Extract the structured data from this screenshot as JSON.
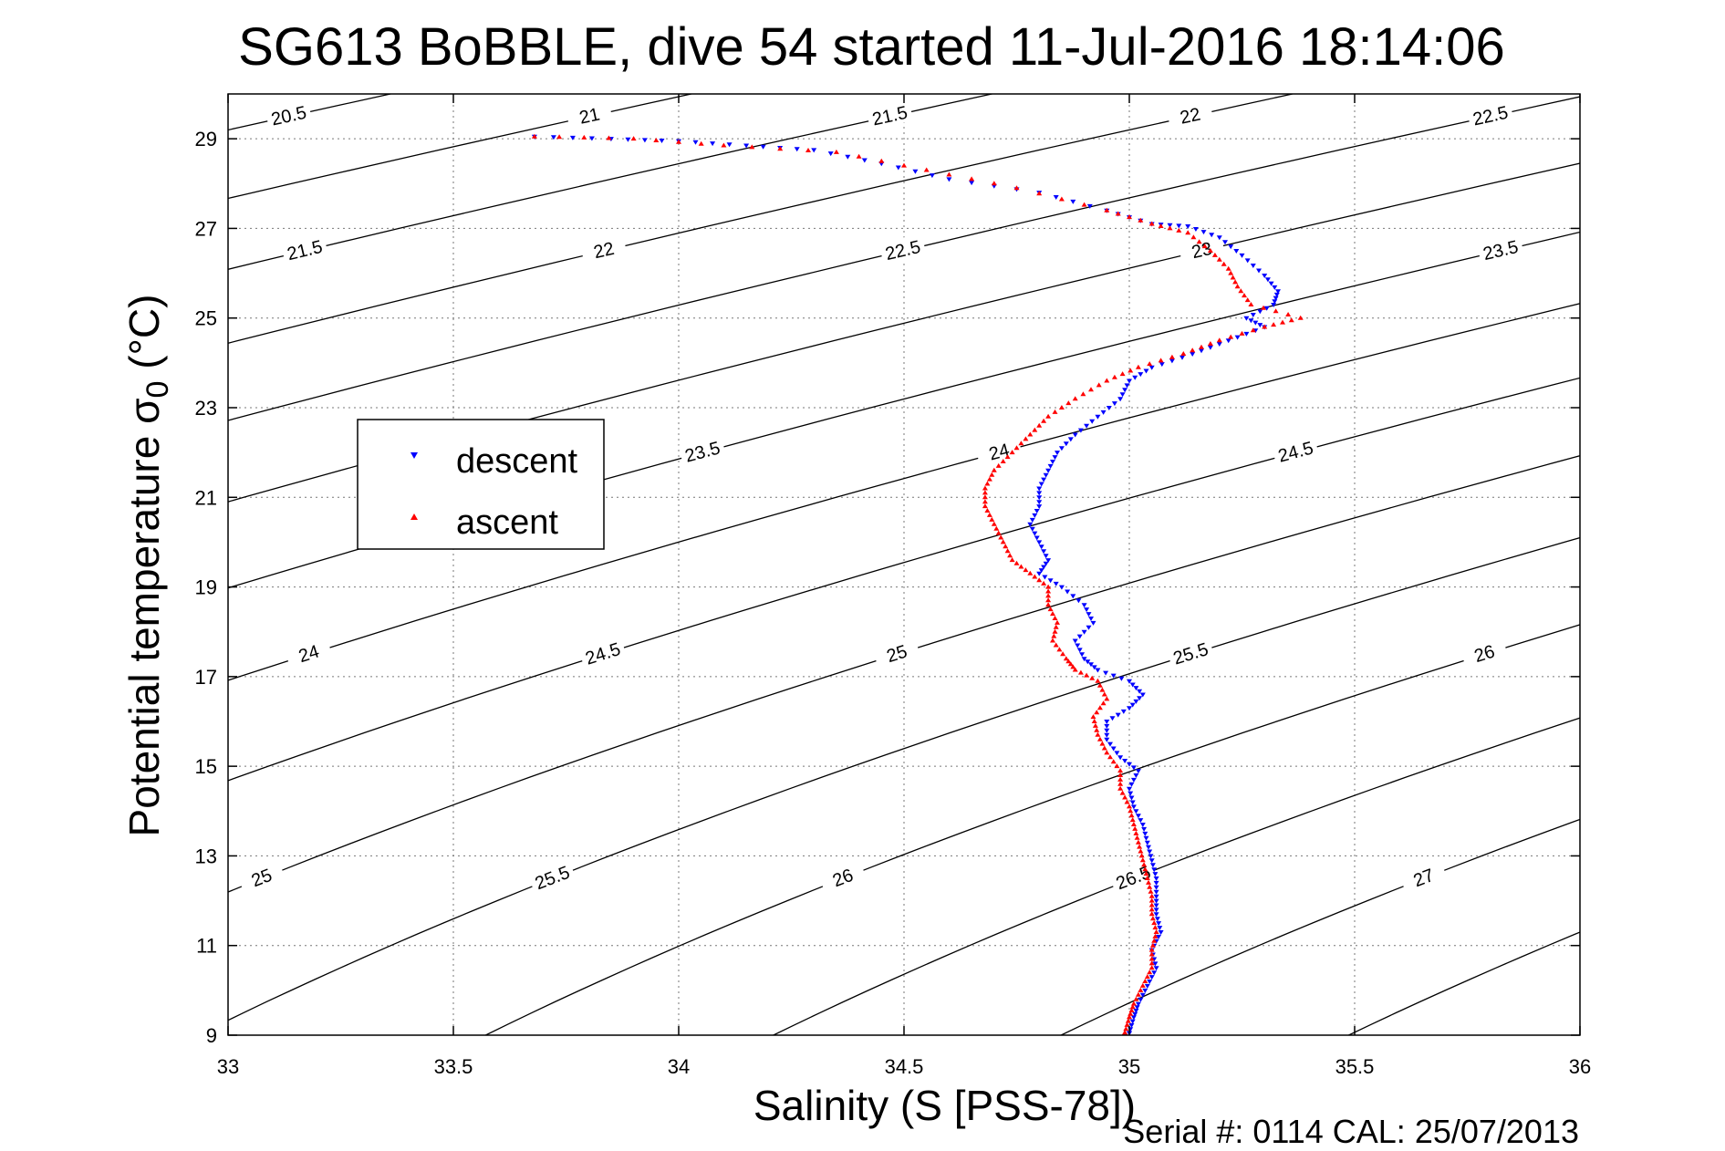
{
  "figure": {
    "title": "SG613 BoBBLE, dive 54 started 11-Jul-2016 18:14:06",
    "xlabel": "Salinity (S [PSS-78])",
    "ylabel_main": "Potential temperature σ",
    "ylabel_sub": "0",
    "ylabel_unit": " (°C)",
    "footer": "Serial #: 0114  CAL: 25/07/2013"
  },
  "chart_data": {
    "type": "scatter",
    "title": "SG613 BoBBLE, dive 54 started 11-Jul-2016 18:14:06",
    "xlabel": "Salinity (S [PSS-78])",
    "ylabel": "Potential temperature σ0 (°C)",
    "xlim": [
      33,
      36
    ],
    "ylim": [
      9,
      30
    ],
    "xticks": [
      33,
      33.5,
      34,
      34.5,
      35,
      35.5,
      36
    ],
    "xtick_labels": [
      "33",
      "33.5",
      "34",
      "34.5",
      "35",
      "35.5",
      "36"
    ],
    "yticks": [
      9,
      11,
      13,
      15,
      17,
      19,
      21,
      23,
      25,
      27,
      29
    ],
    "ytick_labels": [
      "9",
      "11",
      "13",
      "15",
      "17",
      "19",
      "21",
      "23",
      "25",
      "27",
      "29"
    ],
    "grid": true,
    "legend_position": "upper-left",
    "density_contours": {
      "levels": [
        20.5,
        21,
        21.5,
        22,
        22.5,
        23,
        23.5,
        24,
        24.5,
        25,
        25.5,
        26,
        26.5,
        27,
        27.5
      ],
      "color": "#000000"
    },
    "series": [
      {
        "name": "descent",
        "color": "#0000ff",
        "marker": "triangle-down",
        "points": [
          [
            33.68,
            29.05
          ],
          [
            33.85,
            29.0
          ],
          [
            34.0,
            28.95
          ],
          [
            34.15,
            28.85
          ],
          [
            34.3,
            28.75
          ],
          [
            34.45,
            28.45
          ],
          [
            34.6,
            28.1
          ],
          [
            34.8,
            27.8
          ],
          [
            34.95,
            27.4
          ],
          [
            35.05,
            27.1
          ],
          [
            35.13,
            27.05
          ],
          [
            35.2,
            26.8
          ],
          [
            35.25,
            26.4
          ],
          [
            35.3,
            25.95
          ],
          [
            35.33,
            25.6
          ],
          [
            35.32,
            25.3
          ],
          [
            35.26,
            25.0
          ],
          [
            35.3,
            24.8
          ],
          [
            35.22,
            24.5
          ],
          [
            35.14,
            24.2
          ],
          [
            35.05,
            23.9
          ],
          [
            35.0,
            23.6
          ],
          [
            34.98,
            23.2
          ],
          [
            34.93,
            22.8
          ],
          [
            34.88,
            22.4
          ],
          [
            34.84,
            22.0
          ],
          [
            34.82,
            21.6
          ],
          [
            34.8,
            21.2
          ],
          [
            34.8,
            20.8
          ],
          [
            34.78,
            20.4
          ],
          [
            34.8,
            20.0
          ],
          [
            34.82,
            19.6
          ],
          [
            34.8,
            19.3
          ],
          [
            34.85,
            19.0
          ],
          [
            34.9,
            18.6
          ],
          [
            34.92,
            18.2
          ],
          [
            34.88,
            17.8
          ],
          [
            34.9,
            17.4
          ],
          [
            34.93,
            17.15
          ],
          [
            35.0,
            16.9
          ],
          [
            35.03,
            16.6
          ],
          [
            35.0,
            16.3
          ],
          [
            34.95,
            16.0
          ],
          [
            34.95,
            15.6
          ],
          [
            34.98,
            15.2
          ],
          [
            35.02,
            14.9
          ],
          [
            35.0,
            14.5
          ],
          [
            35.01,
            14.1
          ],
          [
            35.03,
            13.7
          ],
          [
            35.04,
            13.3
          ],
          [
            35.05,
            12.9
          ],
          [
            35.06,
            12.5
          ],
          [
            35.06,
            12.1
          ],
          [
            35.06,
            11.7
          ],
          [
            35.07,
            11.3
          ],
          [
            35.05,
            10.9
          ],
          [
            35.06,
            10.5
          ],
          [
            35.04,
            10.1
          ],
          [
            35.02,
            9.7
          ],
          [
            35.01,
            9.4
          ],
          [
            35.0,
            9.05
          ]
        ]
      },
      {
        "name": "ascent",
        "color": "#ff0000",
        "marker": "triangle-up",
        "points": [
          [
            33.68,
            29.05
          ],
          [
            33.9,
            29.0
          ],
          [
            34.1,
            28.85
          ],
          [
            34.35,
            28.7
          ],
          [
            34.55,
            28.3
          ],
          [
            34.75,
            27.9
          ],
          [
            34.95,
            27.4
          ],
          [
            35.05,
            27.1
          ],
          [
            35.13,
            26.9
          ],
          [
            35.18,
            26.5
          ],
          [
            35.22,
            26.1
          ],
          [
            35.24,
            25.7
          ],
          [
            35.27,
            25.3
          ],
          [
            35.38,
            25.0
          ],
          [
            35.3,
            24.8
          ],
          [
            35.2,
            24.5
          ],
          [
            35.12,
            24.2
          ],
          [
            35.02,
            23.9
          ],
          [
            34.95,
            23.6
          ],
          [
            34.88,
            23.2
          ],
          [
            34.82,
            22.8
          ],
          [
            34.78,
            22.4
          ],
          [
            34.74,
            22.0
          ],
          [
            34.7,
            21.6
          ],
          [
            34.68,
            21.2
          ],
          [
            34.68,
            20.8
          ],
          [
            34.7,
            20.4
          ],
          [
            34.72,
            20.0
          ],
          [
            34.74,
            19.6
          ],
          [
            34.78,
            19.3
          ],
          [
            34.82,
            19.0
          ],
          [
            34.82,
            18.6
          ],
          [
            34.84,
            18.2
          ],
          [
            34.83,
            17.8
          ],
          [
            34.86,
            17.4
          ],
          [
            34.88,
            17.15
          ],
          [
            34.93,
            16.9
          ],
          [
            34.95,
            16.5
          ],
          [
            34.92,
            16.1
          ],
          [
            34.93,
            15.7
          ],
          [
            34.95,
            15.3
          ],
          [
            34.98,
            14.9
          ],
          [
            34.98,
            14.5
          ],
          [
            35.0,
            14.1
          ],
          [
            35.01,
            13.7
          ],
          [
            35.02,
            13.3
          ],
          [
            35.03,
            12.9
          ],
          [
            35.04,
            12.5
          ],
          [
            35.05,
            12.1
          ],
          [
            35.05,
            11.7
          ],
          [
            35.06,
            11.3
          ],
          [
            35.05,
            10.9
          ],
          [
            35.05,
            10.5
          ],
          [
            35.03,
            10.1
          ],
          [
            35.01,
            9.7
          ],
          [
            35.0,
            9.4
          ],
          [
            34.99,
            9.05
          ]
        ]
      }
    ]
  }
}
